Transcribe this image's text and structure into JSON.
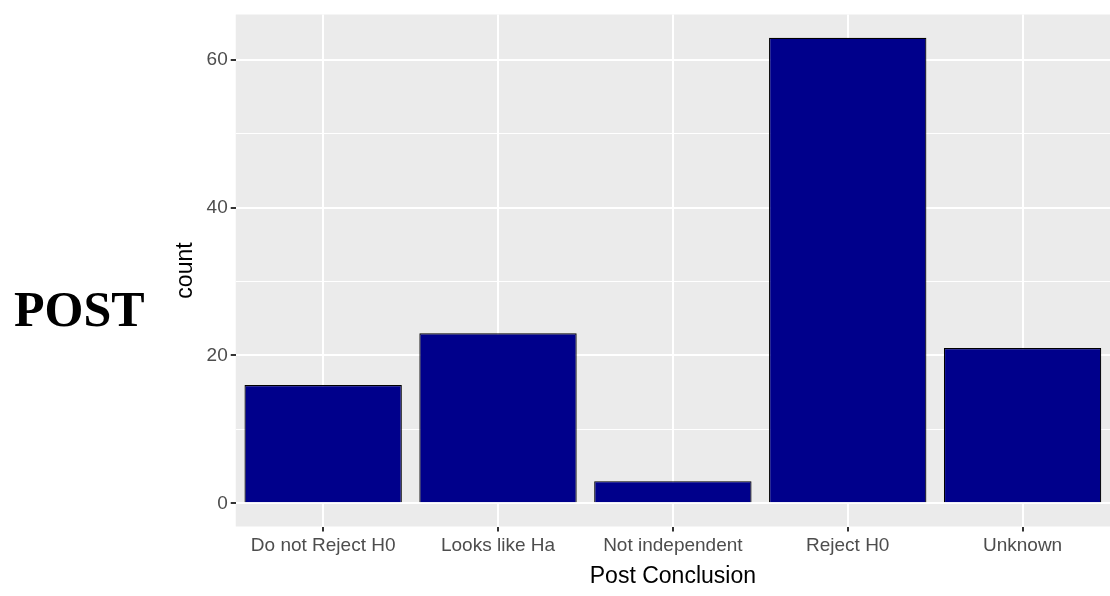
{
  "chart_data": {
    "type": "bar",
    "xlabel": "Post Conclusion",
    "ylabel": "count",
    "annotations": [
      "POST"
    ],
    "categories": [
      "Do not Reject H0",
      "Looks like Ha",
      "Not independent",
      "Reject H0",
      "Unknown"
    ],
    "values": [
      16,
      23,
      3,
      63,
      21
    ],
    "color": "#00008b",
    "ylim": [
      -3.15,
      66.15
    ],
    "yticks": [
      0,
      {
        "value": 10,
        "label": null
      },
      20,
      {
        "value": 30,
        "label": null
      },
      40,
      {
        "value": 50,
        "label": null
      },
      60
    ],
    "grid": true
  }
}
